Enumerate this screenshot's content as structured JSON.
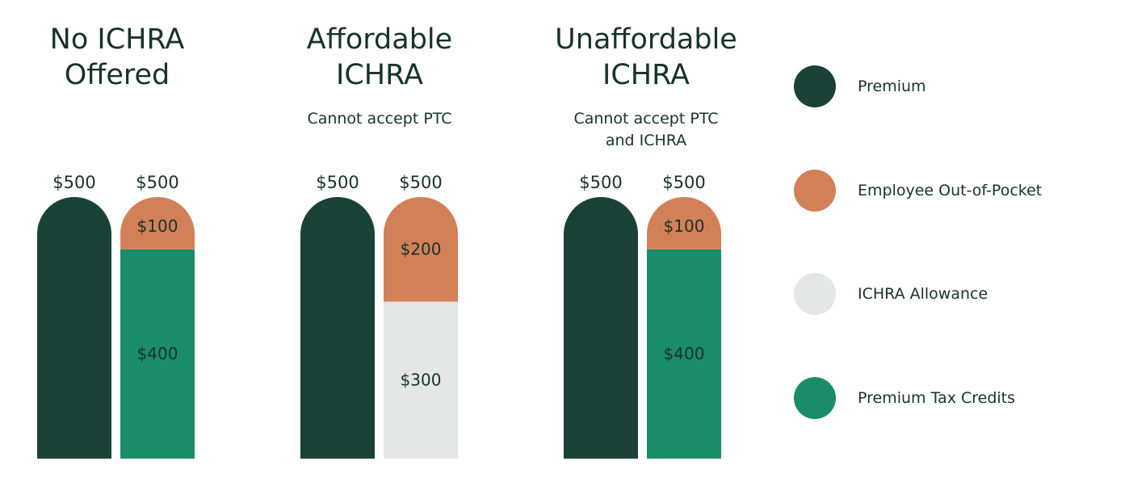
{
  "colors": {
    "premium": "#1a4236",
    "employee_out_of_pocket": "#d28058",
    "ichra_allowance": "#e3e8e6",
    "premium_tax_credits": "#1b8c69",
    "text": "#17322a"
  },
  "legend": [
    {
      "label": "Premium",
      "color_key": "premium"
    },
    {
      "label": "Employee Out-of-Pocket",
      "color_key": "employee_out_of_pocket"
    },
    {
      "label": "ICHRA Allowance",
      "color_key": "ichra_allowance"
    },
    {
      "label": "Premium Tax Credits",
      "color_key": "premium_tax_credits"
    }
  ],
  "chart_data": {
    "type": "bar",
    "stacked": true,
    "ylim": [
      0,
      500
    ],
    "grid": false,
    "legend_position": "right",
    "groups": [
      {
        "title": "No ICHRA\nOffered",
        "subtitle": "",
        "bars": [
          {
            "total_label": "$500",
            "segments": [
              {
                "series": "premium",
                "value": 500,
                "label": ""
              }
            ]
          },
          {
            "total_label": "$500",
            "segments": [
              {
                "series": "premium_tax_credits",
                "value": 400,
                "label": "$400"
              },
              {
                "series": "employee_out_of_pocket",
                "value": 100,
                "label": "$100"
              }
            ]
          }
        ]
      },
      {
        "title": "Affordable\nICHRA",
        "subtitle": "Cannot accept PTC",
        "bars": [
          {
            "total_label": "$500",
            "segments": [
              {
                "series": "premium",
                "value": 500,
                "label": ""
              }
            ]
          },
          {
            "total_label": "$500",
            "segments": [
              {
                "series": "ichra_allowance",
                "value": 300,
                "label": "$300"
              },
              {
                "series": "employee_out_of_pocket",
                "value": 200,
                "label": "$200"
              }
            ]
          }
        ]
      },
      {
        "title": "Unaffordable\nICHRA",
        "subtitle": "Cannot accept PTC\nand ICHRA",
        "bars": [
          {
            "total_label": "$500",
            "segments": [
              {
                "series": "premium",
                "value": 500,
                "label": ""
              }
            ]
          },
          {
            "total_label": "$500",
            "segments": [
              {
                "series": "premium_tax_credits",
                "value": 400,
                "label": "$400"
              },
              {
                "series": "employee_out_of_pocket",
                "value": 100,
                "label": "$100"
              }
            ]
          }
        ]
      }
    ]
  }
}
